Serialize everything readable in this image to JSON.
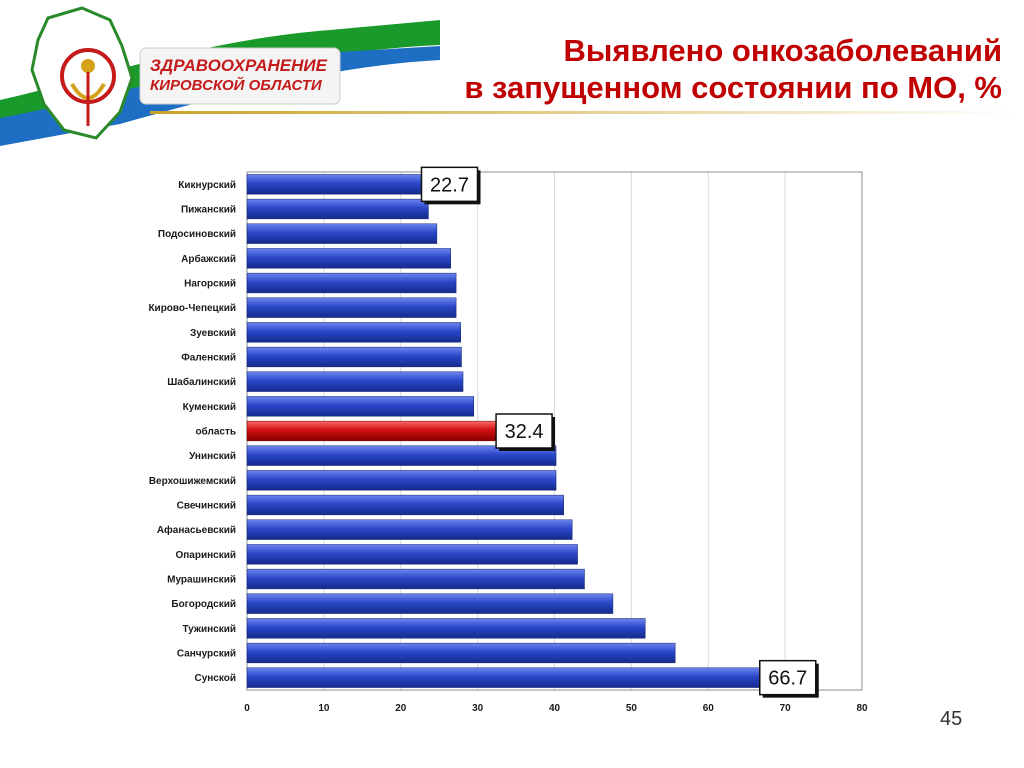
{
  "header": {
    "org_name_line1": "ЗДРАВООХРАНЕНИЕ",
    "org_name_line2": "КИРОВСКОЙ ОБЛАСТИ",
    "title_line1": "Выявлено онкозаболеваний",
    "title_line2": "в запущенном состоянии по МО, %"
  },
  "page_number": "45",
  "colors": {
    "title": "#c00000",
    "bar_default": "#2a47c8",
    "bar_highlight": "#d01010",
    "banner_green": "#1a9a2a",
    "banner_blue": "#1e6fc4",
    "logo_red": "#c41a1a",
    "logo_gold": "#d4a21a"
  },
  "chart_data": {
    "type": "bar",
    "orientation": "horizontal",
    "categories": [
      "Кикнурский",
      "Пижанский",
      "Подосиновский",
      "Арбажский",
      "Нагорский",
      "Кирово-Чепецкий",
      "Зуевский",
      "Фаленский",
      "Шабалинский",
      "Куменский",
      "область",
      "Унинский",
      "Верхошижемский",
      "Свечинский",
      "Афанасьевский",
      "Опаринский",
      "Мурашинский",
      "Богородский",
      "Тужинский",
      "Санчурский",
      "Сунской"
    ],
    "values": [
      22.7,
      23.6,
      24.7,
      26.5,
      27.2,
      27.2,
      27.8,
      27.9,
      28.1,
      29.5,
      32.4,
      40.2,
      40.2,
      41.2,
      42.3,
      43.0,
      43.9,
      47.6,
      51.8,
      55.7,
      66.7
    ],
    "highlight": [
      "область"
    ],
    "data_labels": [
      {
        "category": "Кикнурский",
        "text": "22.7"
      },
      {
        "category": "область",
        "text": "32.4"
      },
      {
        "category": "Сунской",
        "text": "66.7"
      }
    ],
    "xticks": [
      "0",
      "10",
      "20",
      "30",
      "40",
      "50",
      "60",
      "70",
      "80"
    ],
    "xlim": [
      0,
      80
    ],
    "grid": true
  }
}
